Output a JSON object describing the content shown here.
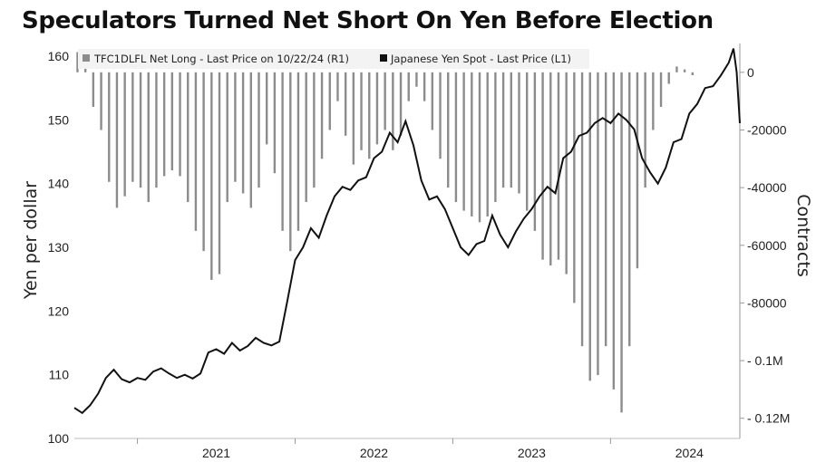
{
  "title": "Speculators Turned Net Short On Yen Before Election",
  "chart_data": {
    "type": "bar",
    "legend": [
      {
        "label": "TFC1DLFL Net Long - Last Price on 10/22/24 (R1)",
        "color": "#8c8c8c"
      },
      {
        "label": "Japanese Yen Spot - Last Price (L1)",
        "color": "#111111"
      }
    ],
    "left_axis": {
      "label": "Yen per dollar",
      "range": [
        100,
        162
      ],
      "ticks": [
        "100",
        "110",
        "120",
        "130",
        "140",
        "150",
        "160"
      ]
    },
    "right_axis": {
      "label": "Contracts",
      "range": [
        -127000,
        10000
      ],
      "ticks": [
        "0",
        "-20000",
        "-40000",
        "-60000",
        "-80000",
        "- 0.1M",
        "- 0.12M"
      ]
    },
    "x_axis": {
      "ticks": [
        "2021",
        "2022",
        "2023",
        "2024"
      ],
      "range": [
        2020.6,
        2024.82
      ]
    },
    "series": [
      {
        "name": "TFC1DLFL Net Long - Last Price on 10/22/24 (R1)",
        "type": "bar",
        "axis": "right",
        "points": [
          [
            2020.62,
            7000
          ],
          [
            2020.67,
            5000
          ],
          [
            2020.72,
            -12000
          ],
          [
            2020.77,
            -20000
          ],
          [
            2020.82,
            -38000
          ],
          [
            2020.87,
            -47000
          ],
          [
            2020.92,
            -43000
          ],
          [
            2020.97,
            -38000
          ],
          [
            2021.02,
            -40000
          ],
          [
            2021.07,
            -45000
          ],
          [
            2021.12,
            -40000
          ],
          [
            2021.17,
            -36000
          ],
          [
            2021.22,
            -34000
          ],
          [
            2021.27,
            -36000
          ],
          [
            2021.32,
            -45000
          ],
          [
            2021.37,
            -55000
          ],
          [
            2021.42,
            -62000
          ],
          [
            2021.47,
            -72000
          ],
          [
            2021.52,
            -70000
          ],
          [
            2021.57,
            -45000
          ],
          [
            2021.62,
            -38000
          ],
          [
            2021.67,
            -42000
          ],
          [
            2021.72,
            -47000
          ],
          [
            2021.77,
            -40000
          ],
          [
            2021.82,
            -25000
          ],
          [
            2021.87,
            -35000
          ],
          [
            2021.92,
            -55000
          ],
          [
            2021.97,
            -62000
          ],
          [
            2022.02,
            -55000
          ],
          [
            2022.07,
            -45000
          ],
          [
            2022.12,
            -40000
          ],
          [
            2022.17,
            -30000
          ],
          [
            2022.22,
            -20000
          ],
          [
            2022.27,
            -10000
          ],
          [
            2022.32,
            -22000
          ],
          [
            2022.37,
            -32000
          ],
          [
            2022.42,
            -27000
          ],
          [
            2022.47,
            -30000
          ],
          [
            2022.52,
            -25000
          ],
          [
            2022.57,
            -20000
          ],
          [
            2022.62,
            -27000
          ],
          [
            2022.67,
            -22000
          ],
          [
            2022.72,
            -10000
          ],
          [
            2022.77,
            -5000
          ],
          [
            2022.82,
            -10000
          ],
          [
            2022.87,
            -20000
          ],
          [
            2022.92,
            -30000
          ],
          [
            2022.97,
            -40000
          ],
          [
            2023.02,
            -45000
          ],
          [
            2023.07,
            -48000
          ],
          [
            2023.12,
            -50000
          ],
          [
            2023.17,
            -52000
          ],
          [
            2023.22,
            -50000
          ],
          [
            2023.27,
            -45000
          ],
          [
            2023.32,
            -40000
          ],
          [
            2023.37,
            -40000
          ],
          [
            2023.42,
            -42000
          ],
          [
            2023.47,
            -48000
          ],
          [
            2023.52,
            -55000
          ],
          [
            2023.57,
            -65000
          ],
          [
            2023.62,
            -67000
          ],
          [
            2023.67,
            -65000
          ],
          [
            2023.72,
            -70000
          ],
          [
            2023.77,
            -80000
          ],
          [
            2023.82,
            -95000
          ],
          [
            2023.87,
            -107000
          ],
          [
            2023.92,
            -105000
          ],
          [
            2023.97,
            -95000
          ],
          [
            2024.02,
            -110000
          ],
          [
            2024.07,
            -118000
          ],
          [
            2024.12,
            -95000
          ],
          [
            2024.17,
            -68000
          ],
          [
            2024.22,
            -40000
          ],
          [
            2024.27,
            -20000
          ],
          [
            2024.32,
            -12000
          ],
          [
            2024.37,
            -4000
          ],
          [
            2024.42,
            2000
          ],
          [
            2024.47,
            1000
          ],
          [
            2024.52,
            -1000
          ]
        ]
      },
      {
        "name": "Japanese Yen Spot - Last Price (L1)",
        "type": "line",
        "axis": "left",
        "points": [
          [
            2020.6,
            104.8
          ],
          [
            2020.65,
            104.0
          ],
          [
            2020.7,
            105.2
          ],
          [
            2020.75,
            107.0
          ],
          [
            2020.8,
            109.5
          ],
          [
            2020.85,
            110.8
          ],
          [
            2020.9,
            109.3
          ],
          [
            2020.95,
            108.8
          ],
          [
            2021.0,
            109.5
          ],
          [
            2021.05,
            109.2
          ],
          [
            2021.1,
            110.5
          ],
          [
            2021.15,
            111.0
          ],
          [
            2021.2,
            110.2
          ],
          [
            2021.25,
            109.5
          ],
          [
            2021.3,
            110.0
          ],
          [
            2021.35,
            109.4
          ],
          [
            2021.4,
            110.2
          ],
          [
            2021.45,
            113.5
          ],
          [
            2021.5,
            114.0
          ],
          [
            2021.55,
            113.3
          ],
          [
            2021.6,
            115.0
          ],
          [
            2021.65,
            113.8
          ],
          [
            2021.7,
            114.5
          ],
          [
            2021.75,
            115.8
          ],
          [
            2021.8,
            115.0
          ],
          [
            2021.85,
            114.6
          ],
          [
            2021.9,
            115.2
          ],
          [
            2021.95,
            121.5
          ],
          [
            2022.0,
            128.0
          ],
          [
            2022.05,
            130.0
          ],
          [
            2022.1,
            133.0
          ],
          [
            2022.15,
            131.5
          ],
          [
            2022.2,
            135.0
          ],
          [
            2022.25,
            138.0
          ],
          [
            2022.3,
            139.5
          ],
          [
            2022.35,
            139.0
          ],
          [
            2022.4,
            140.5
          ],
          [
            2022.45,
            141.0
          ],
          [
            2022.5,
            144.0
          ],
          [
            2022.55,
            145.0
          ],
          [
            2022.6,
            148.0
          ],
          [
            2022.65,
            146.5
          ],
          [
            2022.7,
            149.8
          ],
          [
            2022.75,
            146.0
          ],
          [
            2022.8,
            140.5
          ],
          [
            2022.85,
            137.5
          ],
          [
            2022.9,
            138.0
          ],
          [
            2022.95,
            136.0
          ],
          [
            2023.0,
            133.0
          ],
          [
            2023.05,
            130.0
          ],
          [
            2023.1,
            128.8
          ],
          [
            2023.15,
            130.5
          ],
          [
            2023.2,
            131.0
          ],
          [
            2023.25,
            135.0
          ],
          [
            2023.3,
            132.0
          ],
          [
            2023.35,
            130.0
          ],
          [
            2023.4,
            132.5
          ],
          [
            2023.45,
            134.5
          ],
          [
            2023.5,
            136.0
          ],
          [
            2023.55,
            138.0
          ],
          [
            2023.6,
            139.5
          ],
          [
            2023.65,
            138.5
          ],
          [
            2023.7,
            144.0
          ],
          [
            2023.75,
            145.0
          ],
          [
            2023.8,
            147.5
          ],
          [
            2023.85,
            148.0
          ],
          [
            2023.9,
            149.5
          ],
          [
            2023.95,
            150.3
          ],
          [
            2024.0,
            149.5
          ],
          [
            2024.05,
            151.0
          ],
          [
            2024.1,
            150.0
          ],
          [
            2024.15,
            148.5
          ],
          [
            2024.2,
            144.0
          ],
          [
            2024.25,
            141.8
          ],
          [
            2024.3,
            140.0
          ],
          [
            2024.35,
            142.5
          ],
          [
            2024.4,
            146.5
          ],
          [
            2024.45,
            147.0
          ],
          [
            2024.5,
            151.0
          ],
          [
            2024.55,
            152.5
          ],
          [
            2024.6,
            155.0
          ],
          [
            2024.65,
            155.3
          ],
          [
            2024.7,
            157.0
          ],
          [
            2024.75,
            159.0
          ],
          [
            2024.78,
            161.2
          ],
          [
            2024.8,
            157.5
          ],
          [
            2024.82,
            149.5
          ]
        ]
      }
    ]
  }
}
